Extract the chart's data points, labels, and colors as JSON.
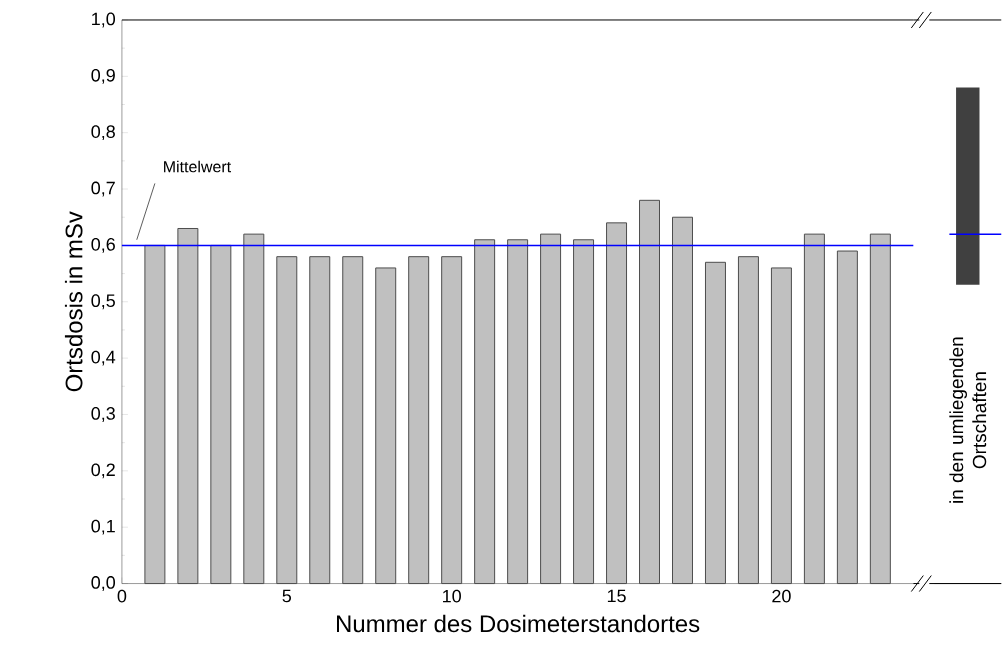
{
  "chart_data": [
    {
      "type": "bar",
      "xlabel": "Nummer des Dosimeterstandortes",
      "ylabel": "Ortsdosis in mSv",
      "color": "#c0c0c0",
      "x": [
        1,
        2,
        3,
        4,
        5,
        6,
        7,
        8,
        9,
        10,
        11,
        12,
        13,
        14,
        15,
        16,
        17,
        18,
        19,
        20,
        21,
        22,
        23
      ],
      "values": [
        0.6,
        0.63,
        0.6,
        0.62,
        0.58,
        0.58,
        0.58,
        0.56,
        0.58,
        0.58,
        0.61,
        0.61,
        0.62,
        0.61,
        0.64,
        0.68,
        0.65,
        0.57,
        0.58,
        0.56,
        0.62,
        0.59,
        0.62
      ],
      "xlim": [
        0,
        24
      ],
      "xticks": [
        0,
        5,
        10,
        15,
        20
      ],
      "ylim": [
        0,
        1
      ],
      "yticks": [
        {
          "value": 0,
          "label": "0,0"
        },
        {
          "value": 0.1,
          "label": "0,1"
        },
        {
          "value": 0.2,
          "label": "0,2"
        },
        {
          "value": 0.3,
          "label": "0,3"
        },
        {
          "value": 0.4,
          "label": "0,4"
        },
        {
          "value": 0.5,
          "label": "0,5"
        },
        {
          "value": 0.6,
          "label": "0,6"
        },
        {
          "value": 0.7,
          "label": "0,7"
        },
        {
          "value": 0.8,
          "label": "0,8"
        },
        {
          "value": 0.9,
          "label": "0,9"
        },
        {
          "value": 1,
          "label": "1,0"
        }
      ],
      "ref_lines": [
        {
          "axis": "y",
          "value": 0.6,
          "label": "Mittelwert",
          "color": "#0000ff"
        }
      ]
    },
    {
      "type": "bar",
      "categories": [
        null
      ],
      "values": [
        0.35
      ],
      "base": [
        0.53
      ],
      "color": "#404040",
      "ylim": [
        0,
        1
      ],
      "annotations": [
        "in den umliegenden Ortschaften"
      ],
      "ref_lines": [
        {
          "axis": "y",
          "value": 0.62,
          "color": "#0000ff"
        }
      ]
    }
  ]
}
